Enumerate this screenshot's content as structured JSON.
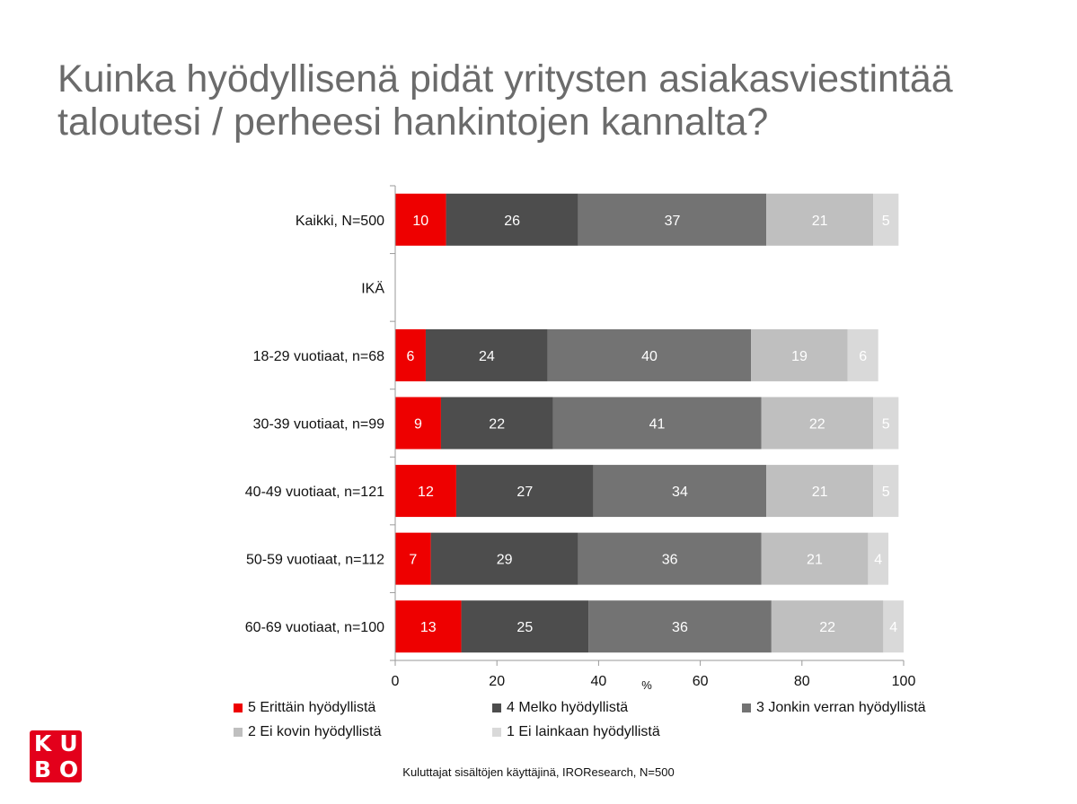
{
  "title": "Kuinka hyödyllisenä pidät yritysten asiakasviestintää taloutesi / perheesi hankintojen kannalta?",
  "source": "Kuluttajat sisältöjen käyttäjinä, IROResearch, N=500",
  "logo": {
    "top_left": "K",
    "top_right": "U",
    "bottom_left": "B",
    "bottom_right": "O"
  },
  "chart_data": {
    "type": "bar",
    "orientation": "horizontal",
    "stacked": true,
    "xlabel": "%",
    "xlim": [
      0,
      100
    ],
    "xticks": [
      0,
      20,
      40,
      60,
      80,
      100
    ],
    "categories": [
      "Kaikki, N=500",
      "IKÄ",
      "18-29 vuotiaat, n=68",
      "30-39 vuotiaat, n=99",
      "40-49 vuotiaat, n=121",
      "50-59 vuotiaat, n=112",
      "60-69 vuotiaat, n=100"
    ],
    "series": [
      {
        "name": "5 Erittäin hyödyllistä",
        "color": "#ee0000",
        "label_color": "#ffffff",
        "values": [
          10,
          null,
          6,
          9,
          12,
          7,
          13
        ]
      },
      {
        "name": "4 Melko hyödyllistä",
        "color": "#4d4d4d",
        "label_color": "#ffffff",
        "values": [
          26,
          null,
          24,
          22,
          27,
          29,
          25
        ]
      },
      {
        "name": "3 Jonkin verran hyödyllistä",
        "color": "#737373",
        "label_color": "#ffffff",
        "values": [
          37,
          null,
          40,
          41,
          34,
          36,
          36
        ]
      },
      {
        "name": "2 Ei kovin hyödyllistä",
        "color": "#bfbfbf",
        "label_color": "#ffffff",
        "values": [
          21,
          null,
          19,
          22,
          21,
          21,
          22
        ]
      },
      {
        "name": "1 Ei lainkaan hyödyllistä",
        "color": "#d9d9d9",
        "label_color": "#ffffff",
        "values": [
          5,
          null,
          6,
          5,
          5,
          4,
          4
        ]
      }
    ],
    "grid": false,
    "legend_position": "bottom"
  }
}
